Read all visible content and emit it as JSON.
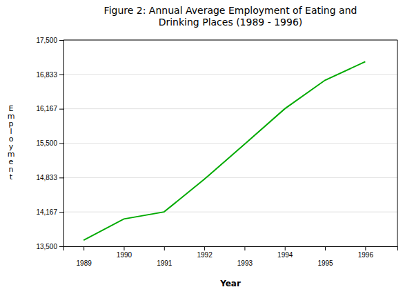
{
  "chart_data": {
    "type": "line",
    "title": "Figure 2:  Annual Average Employment of Eating and\nDrinking Places (1989 - 1996)",
    "xlabel": "Year",
    "ylabel": "E\nm\np\nl\no\ny\nm\ne\nn\nt",
    "x": [
      1989,
      1990,
      1991,
      1992,
      1993,
      1994,
      1995,
      1996
    ],
    "values": [
      13620,
      14030,
      14167,
      14800,
      15480,
      16167,
      16720,
      17080
    ],
    "color": "#00aa00",
    "xlim": [
      1988.5,
      1996.8
    ],
    "xticks": [
      1989,
      1990,
      1991,
      1992,
      1993,
      1994,
      1995,
      1996
    ],
    "ylim": [
      13500,
      17500
    ],
    "yticks": [
      {
        "value": 13500,
        "label": "13,500"
      },
      {
        "value": 14167,
        "label": "14,167"
      },
      {
        "value": 14833,
        "label": "14,833"
      },
      {
        "value": 15500,
        "label": "15,500"
      },
      {
        "value": 16167,
        "label": "16,167"
      },
      {
        "value": 16833,
        "label": "16,833"
      },
      {
        "value": 17500,
        "label": "17,500"
      }
    ],
    "grid": "y"
  }
}
